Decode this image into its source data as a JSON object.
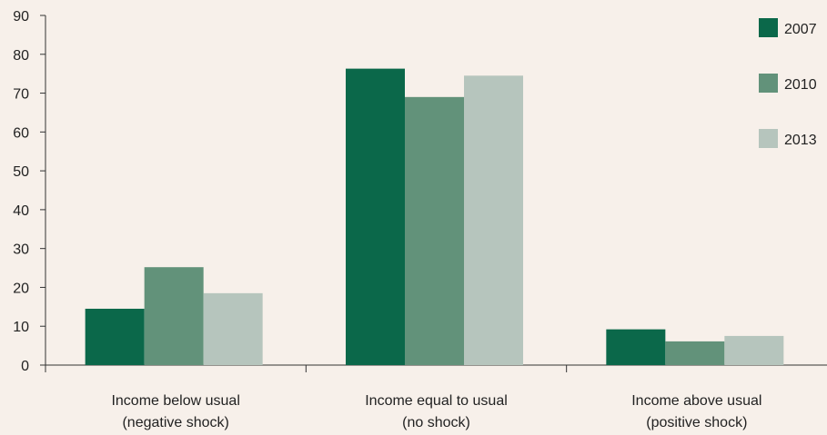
{
  "chart_data": {
    "type": "bar",
    "title": "",
    "xlabel": "",
    "ylabel": "",
    "ylim": [
      0,
      90
    ],
    "yticks": [
      0,
      10,
      20,
      30,
      40,
      50,
      60,
      70,
      80,
      90
    ],
    "grid": false,
    "legend_position": "top-right",
    "categories": [
      [
        "Income below usual",
        "(negative shock)"
      ],
      [
        "Income equal to usual",
        "(no shock)"
      ],
      [
        "Income above usual",
        "(positive shock)"
      ]
    ],
    "series": [
      {
        "name": "2007",
        "color": "#0b684a",
        "values": [
          14.5,
          76.3,
          9.2
        ]
      },
      {
        "name": "2010",
        "color": "#62927a",
        "values": [
          25.2,
          69.0,
          6.1
        ]
      },
      {
        "name": "2013",
        "color": "#b6c5bd",
        "values": [
          18.5,
          74.5,
          7.5
        ]
      }
    ]
  }
}
